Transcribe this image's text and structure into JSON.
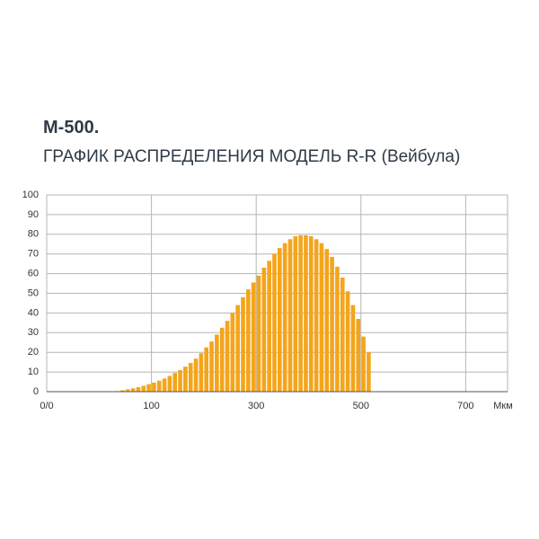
{
  "chart_data": {
    "type": "histogram",
    "title": "М-500.",
    "subtitle": "ГРАФИК РАСПРЕДЕЛЕНИЯ МОДЕЛЬ R-R (Вейбула)",
    "x_label": "Мкм",
    "bins": [
      30,
      40,
      50,
      60,
      70,
      80,
      90,
      100,
      110,
      120,
      130,
      140,
      150,
      160,
      170,
      180,
      190,
      200,
      210,
      220,
      230,
      240,
      250,
      260,
      270,
      280,
      290,
      300,
      310,
      320,
      330,
      340,
      350,
      360,
      370,
      380,
      390,
      400,
      410,
      420,
      430,
      440,
      450,
      460,
      470,
      480,
      490,
      500,
      510,
      520
    ],
    "values": [
      0.3,
      0.7,
      1.2,
      1.7,
      2.3,
      3,
      3.8,
      4.6,
      5.6,
      6.7,
      8,
      9.5,
      11,
      12.7,
      14.6,
      16.8,
      19.5,
      22.5,
      25.5,
      29,
      32.5,
      36,
      40,
      44,
      48,
      52,
      55.5,
      59,
      63,
      66.5,
      70,
      73,
      75.5,
      77.5,
      79,
      79.5,
      79.5,
      79,
      77.5,
      75.5,
      72.5,
      68.5,
      63.5,
      58,
      51,
      44,
      37,
      28,
      20
    ],
    "color": "#f3a51c",
    "xlim": [
      -100,
      780
    ],
    "xticks": [
      {
        "value": -100,
        "label": "0/0"
      },
      100,
      300,
      500,
      700
    ],
    "ylim": [
      0,
      100
    ],
    "yticks": [
      0,
      10,
      20,
      30,
      40,
      50,
      60,
      70,
      80,
      90,
      100
    ],
    "grid": true
  }
}
